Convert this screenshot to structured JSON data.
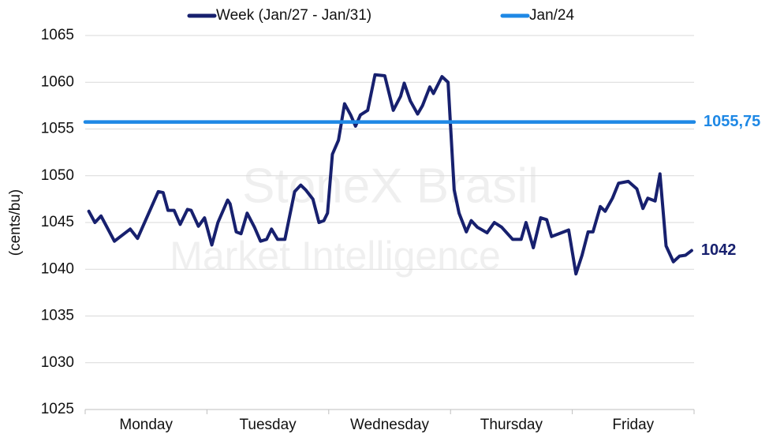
{
  "chart_data": {
    "type": "line",
    "y_label": "(cents/bu)",
    "watermark": [
      "StoneX Brasil",
      "Market Intelligence"
    ],
    "categories": [
      "Monday",
      "Tuesday",
      "Wednesday",
      "Thursday",
      "Friday"
    ],
    "xlim": [
      0,
      5
    ],
    "ylim": [
      1025,
      1065
    ],
    "yticks": [
      1025,
      1030,
      1035,
      1040,
      1045,
      1050,
      1055,
      1060,
      1065
    ],
    "grid": true,
    "legend": "top",
    "series": [
      {
        "name": "Week (Jan/27 - Jan/31)",
        "color": "#17206e",
        "end_label": "1042",
        "x": [
          0.03,
          0.08,
          0.13,
          0.24,
          0.37,
          0.43,
          0.6,
          0.64,
          0.68,
          0.73,
          0.78,
          0.84,
          0.87,
          0.93,
          0.98,
          1.04,
          1.09,
          1.17,
          1.19,
          1.24,
          1.28,
          1.33,
          1.39,
          1.44,
          1.49,
          1.53,
          1.58,
          1.64,
          1.72,
          1.77,
          1.81,
          1.87,
          1.92,
          1.96,
          1.99,
          2.03,
          2.08,
          2.13,
          2.18,
          2.22,
          2.26,
          2.32,
          2.38,
          2.46,
          2.53,
          2.59,
          2.62,
          2.67,
          2.73,
          2.77,
          2.83,
          2.86,
          2.93,
          2.98,
          3.03,
          3.07,
          3.13,
          3.17,
          3.22,
          3.3,
          3.36,
          3.42,
          3.51,
          3.58,
          3.62,
          3.68,
          3.74,
          3.79,
          3.83,
          3.89,
          3.97,
          4.03,
          4.08,
          4.13,
          4.17,
          4.23,
          4.27,
          4.33,
          4.38,
          4.46,
          4.53,
          4.58,
          4.62,
          4.68,
          4.72,
          4.77,
          4.83,
          4.88,
          4.93,
          4.98
        ],
        "values": [
          1046.2,
          1045,
          1045.7,
          1043,
          1044.3,
          1043.3,
          1048.3,
          1048.2,
          1046.3,
          1046.3,
          1044.8,
          1046.4,
          1046.3,
          1044.6,
          1045.5,
          1042.6,
          1045,
          1047.4,
          1047,
          1044,
          1043.8,
          1046,
          1044.5,
          1043,
          1043.2,
          1044.3,
          1043.2,
          1043.2,
          1048.3,
          1049,
          1048.5,
          1047.5,
          1045,
          1045.2,
          1046,
          1052.3,
          1053.8,
          1057.7,
          1056.5,
          1055.3,
          1056.5,
          1057,
          1060.8,
          1060.7,
          1057,
          1058.5,
          1059.9,
          1058,
          1056.6,
          1057.5,
          1059.5,
          1058.8,
          1060.6,
          1060,
          1048.5,
          1046,
          1044,
          1045.2,
          1044.5,
          1043.9,
          1045,
          1044.5,
          1043.2,
          1043.2,
          1045,
          1042.3,
          1045.5,
          1045.3,
          1043.5,
          1043.8,
          1044.2,
          1039.5,
          1041.5,
          1044,
          1044,
          1046.7,
          1046.2,
          1047.6,
          1049.2,
          1049.4,
          1048.6,
          1046.5,
          1047.6,
          1047.3,
          1050.2,
          1042.5,
          1040.8,
          1041.4,
          1041.5,
          1042
        ]
      },
      {
        "name": "Jan/24",
        "color": "#1e88e5",
        "end_label": "1055,75",
        "x": [
          0,
          5
        ],
        "values": [
          1055.75,
          1055.75
        ]
      }
    ]
  }
}
